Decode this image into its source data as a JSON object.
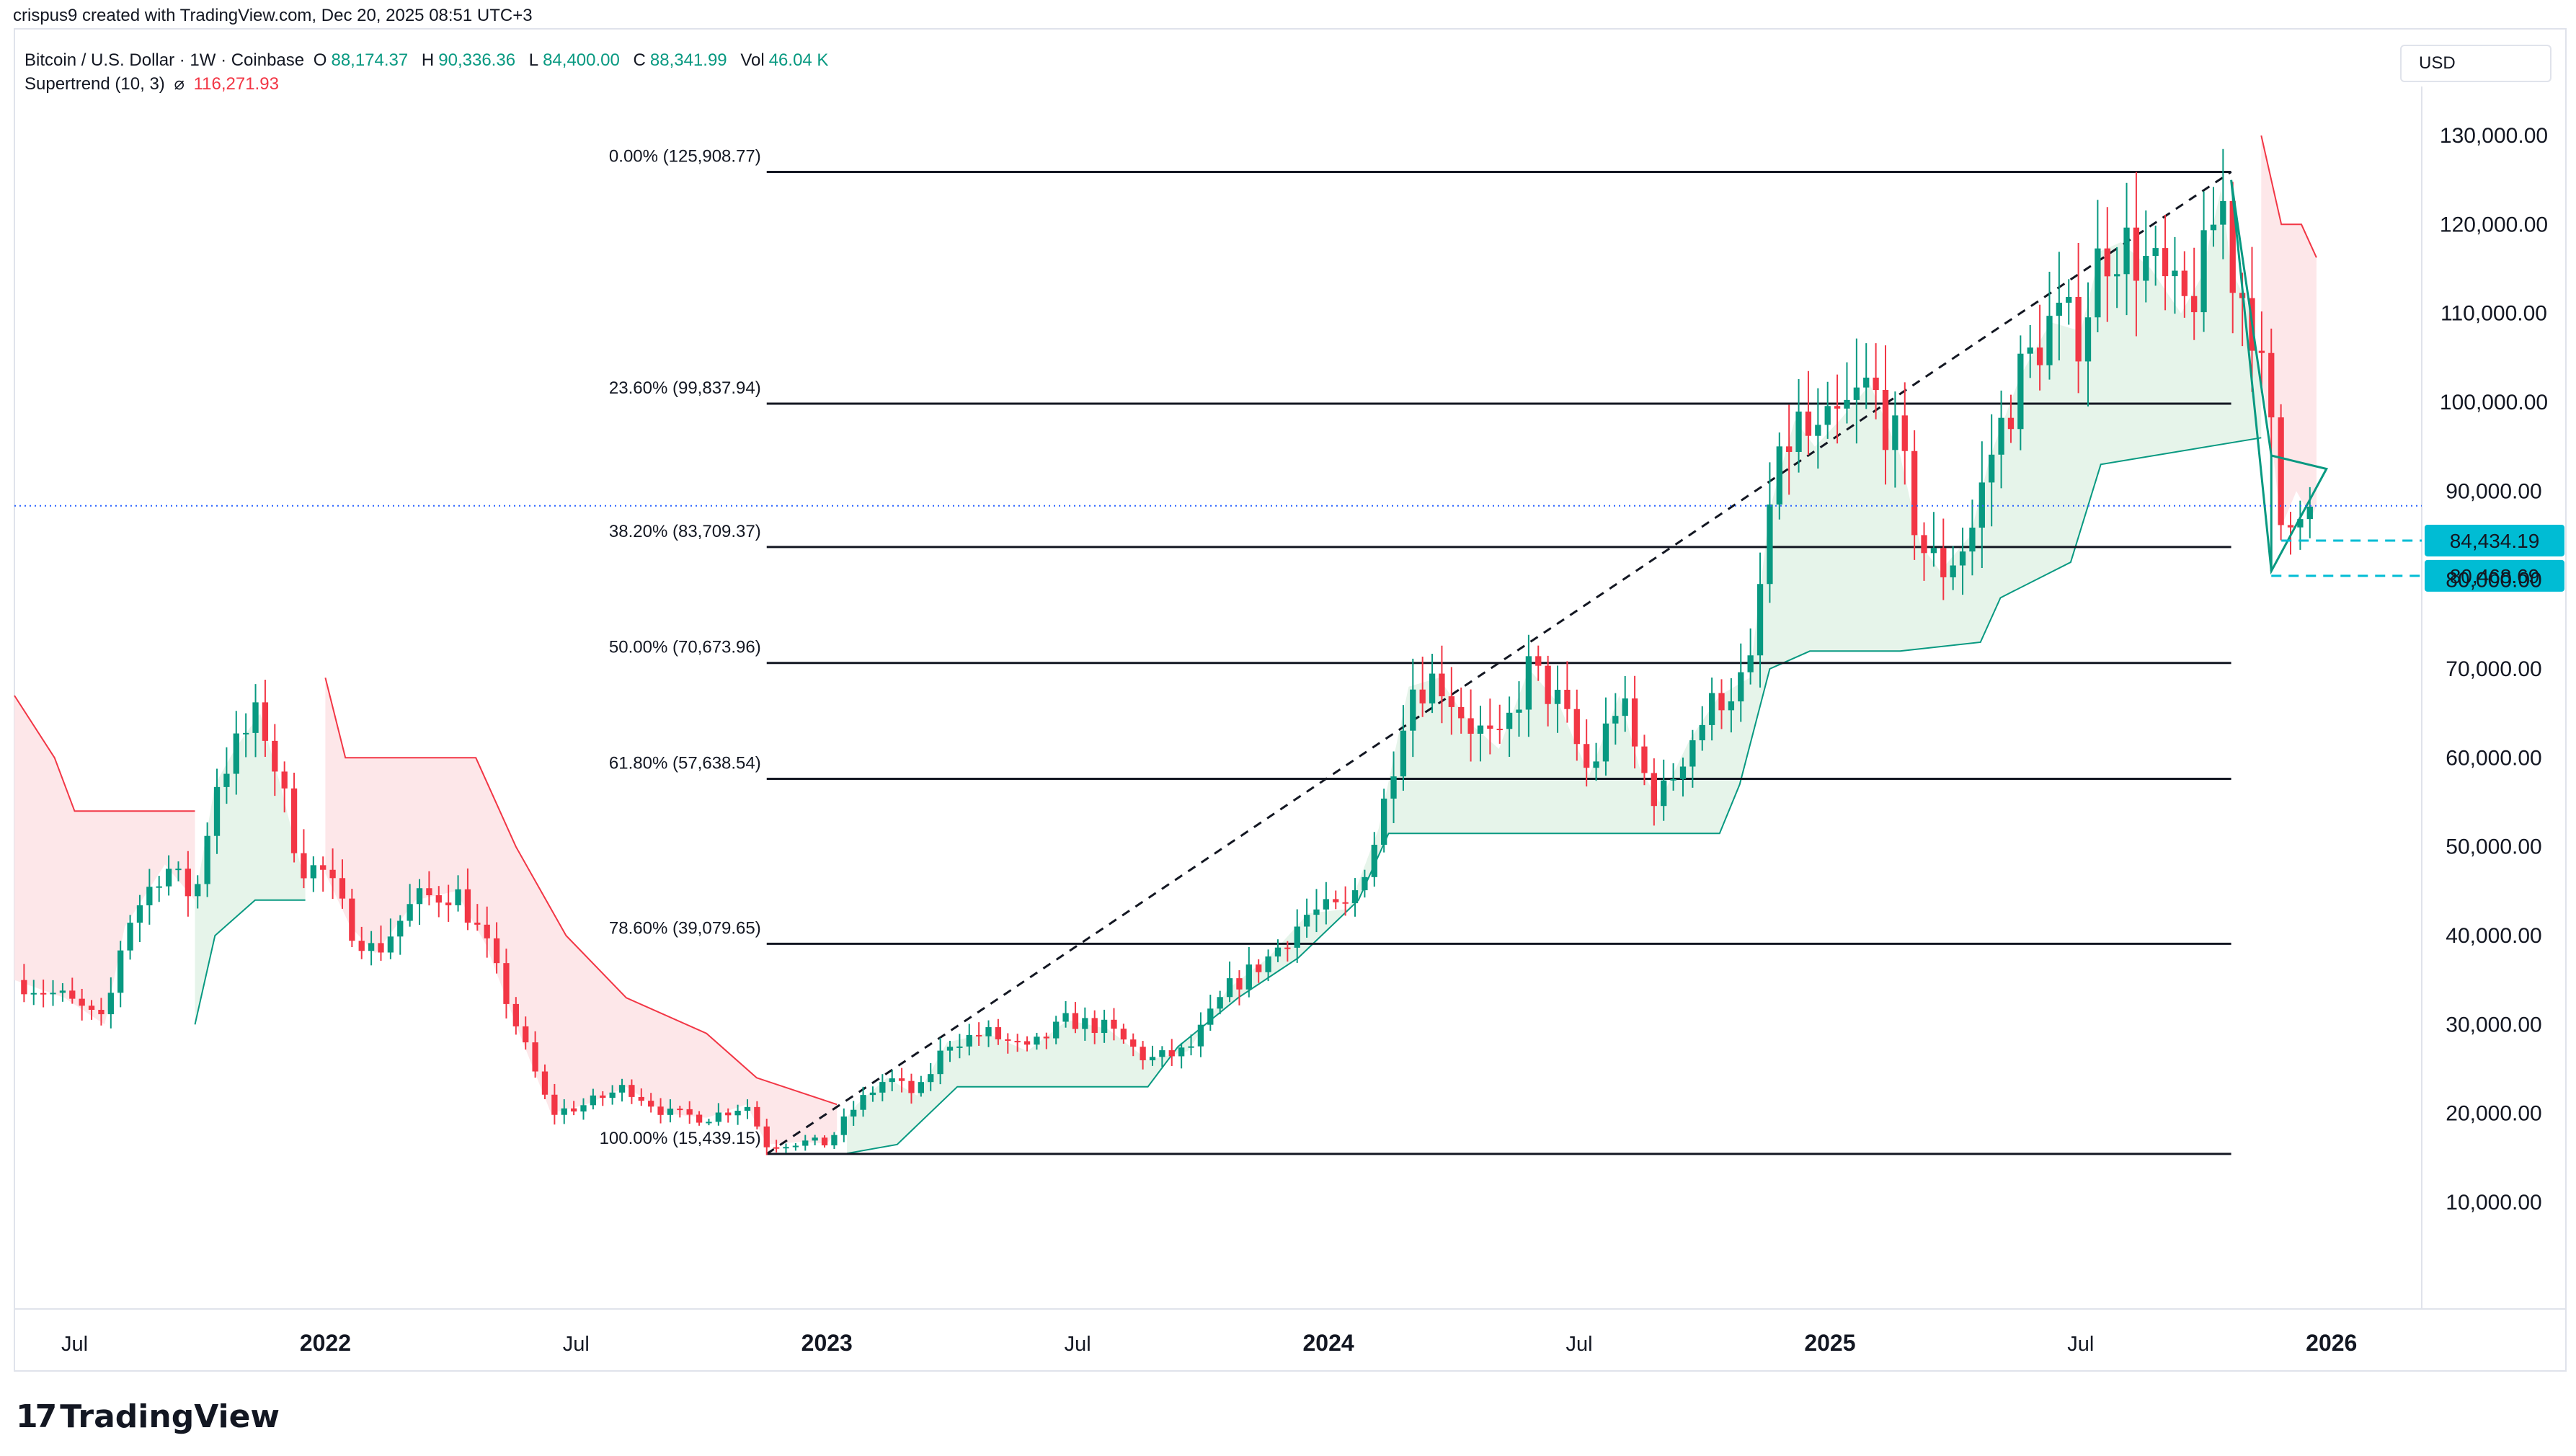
{
  "attribution": "crispus9 created with TradingView.com, Dec 20, 2025 08:51 UTC+3",
  "header": {
    "symbol": "Bitcoin / U.S. Dollar · 1W · Coinbase",
    "o_label": "O",
    "o_value": "88,174.37",
    "h_label": "H",
    "h_value": "90,336.36",
    "l_label": "L",
    "l_value": "84,400.00",
    "c_label": "C",
    "c_value": "88,341.99",
    "vol_label": "Vol",
    "vol_value": "46.04 K",
    "indicator_name": "Supertrend (10, 3)",
    "indicator_symbol": "⌀",
    "indicator_value": "116,271.93"
  },
  "currency": "USD",
  "logo_text": "TradingView",
  "colors": {
    "up": "#089981",
    "down": "#f23645",
    "axis_label_bg": "#00bcd4",
    "bull_line": "#089981",
    "bear_line": "#f23645",
    "bull_fill": "#e6f4ea",
    "bear_fill": "#fde7e9"
  },
  "chart_data": {
    "type": "candlestick",
    "title": "Bitcoin / U.S. Dollar · 1W · Coinbase",
    "y_axis": {
      "ticks": [
        10000,
        20000,
        30000,
        40000,
        50000,
        60000,
        70000,
        80000,
        90000,
        100000,
        110000,
        120000,
        130000
      ],
      "tick_labels": [
        "10,000.00",
        "20,000.00",
        "30,000.00",
        "40,000.00",
        "50,000.00",
        "60,000.00",
        "70,000.00",
        "80,000.00",
        "90,000.00",
        "100,000.00",
        "110,000.00",
        "120,000.00",
        "130,000.00"
      ],
      "range": [
        -2000,
        142000
      ]
    },
    "x_axis": {
      "range": [
        2021.38,
        2026.18
      ],
      "ticks": [
        {
          "t": 2021.5,
          "label": "Jul",
          "bold": false
        },
        {
          "t": 2022.0,
          "label": "2022",
          "bold": true
        },
        {
          "t": 2022.5,
          "label": "Jul",
          "bold": false
        },
        {
          "t": 2023.0,
          "label": "2023",
          "bold": true
        },
        {
          "t": 2023.5,
          "label": "Jul",
          "bold": false
        },
        {
          "t": 2024.0,
          "label": "2024",
          "bold": true
        },
        {
          "t": 2024.5,
          "label": "Jul",
          "bold": false
        },
        {
          "t": 2025.0,
          "label": "2025",
          "bold": true
        },
        {
          "t": 2025.5,
          "label": "Jul",
          "bold": false
        },
        {
          "t": 2026.0,
          "label": "2026",
          "bold": true
        }
      ]
    },
    "price_path": [
      [
        2021.38,
        35000
      ],
      [
        2021.48,
        33000
      ],
      [
        2021.56,
        30000
      ],
      [
        2021.6,
        41000
      ],
      [
        2021.68,
        48000
      ],
      [
        2021.74,
        44000
      ],
      [
        2021.78,
        57000
      ],
      [
        2021.82,
        61000
      ],
      [
        2021.87,
        65000
      ],
      [
        2021.91,
        57000
      ],
      [
        2021.95,
        48000
      ],
      [
        2022.0,
        47000
      ],
      [
        2022.05,
        41000
      ],
      [
        2022.1,
        38000
      ],
      [
        2022.18,
        44000
      ],
      [
        2022.26,
        45000
      ],
      [
        2022.32,
        39000
      ],
      [
        2022.38,
        30000
      ],
      [
        2022.45,
        20000
      ],
      [
        2022.52,
        21000
      ],
      [
        2022.6,
        23000
      ],
      [
        2022.68,
        20000
      ],
      [
        2022.76,
        19500
      ],
      [
        2022.84,
        21000
      ],
      [
        2022.88,
        16500
      ],
      [
        2022.95,
        16800
      ],
      [
        2023.0,
        16600
      ],
      [
        2023.06,
        21000
      ],
      [
        2023.12,
        24000
      ],
      [
        2023.18,
        22000
      ],
      [
        2023.24,
        28000
      ],
      [
        2023.32,
        29000
      ],
      [
        2023.4,
        27000
      ],
      [
        2023.48,
        30500
      ],
      [
        2023.56,
        29500
      ],
      [
        2023.64,
        26000
      ],
      [
        2023.72,
        27000
      ],
      [
        2023.8,
        34000
      ],
      [
        2023.88,
        37500
      ],
      [
        2023.96,
        42500
      ],
      [
        2024.04,
        43000
      ],
      [
        2024.1,
        52000
      ],
      [
        2024.16,
        68000
      ],
      [
        2024.22,
        69000
      ],
      [
        2024.28,
        64000
      ],
      [
        2024.34,
        61000
      ],
      [
        2024.4,
        70000
      ],
      [
        2024.46,
        66000
      ],
      [
        2024.52,
        58000
      ],
      [
        2024.58,
        67000
      ],
      [
        2024.62,
        59000
      ],
      [
        2024.66,
        55000
      ],
      [
        2024.72,
        62000
      ],
      [
        2024.78,
        67000
      ],
      [
        2024.84,
        69000
      ],
      [
        2024.88,
        88000
      ],
      [
        2024.93,
        98000
      ],
      [
        2024.97,
        95000
      ],
      [
        2025.02,
        98000
      ],
      [
        2025.08,
        102000
      ],
      [
        2025.14,
        94000
      ],
      [
        2025.18,
        84000
      ],
      [
        2025.22,
        81000
      ],
      [
        2025.28,
        85000
      ],
      [
        2025.32,
        94000
      ],
      [
        2025.38,
        103000
      ],
      [
        2025.44,
        109000
      ],
      [
        2025.5,
        108000
      ],
      [
        2025.54,
        117000
      ],
      [
        2025.58,
        118000
      ],
      [
        2025.64,
        115000
      ],
      [
        2025.7,
        110000
      ],
      [
        2025.74,
        114000
      ],
      [
        2025.78,
        124000
      ],
      [
        2025.8,
        115000
      ],
      [
        2025.84,
        110000
      ],
      [
        2025.88,
        96000
      ],
      [
        2025.9,
        86000
      ],
      [
        2025.93,
        90000
      ],
      [
        2025.96,
        87000
      ],
      [
        2025.97,
        88342
      ]
    ],
    "supertrend": {
      "segments": [
        {
          "trend": "bear",
          "points": [
            [
              2021.38,
              67000
            ],
            [
              2021.46,
              60000
            ],
            [
              2021.5,
              54000
            ],
            [
              2021.74,
              54000
            ]
          ]
        },
        {
          "trend": "bull",
          "points": [
            [
              2021.74,
              30000
            ],
            [
              2021.78,
              40000
            ],
            [
              2021.86,
              44000
            ],
            [
              2021.96,
              44000
            ]
          ]
        },
        {
          "trend": "bear",
          "points": [
            [
              2022.0,
              69000
            ],
            [
              2022.04,
              60000
            ],
            [
              2022.3,
              60000
            ],
            [
              2022.38,
              50000
            ],
            [
              2022.48,
              40000
            ],
            [
              2022.6,
              33000
            ],
            [
              2022.76,
              29000
            ],
            [
              2022.86,
              24000
            ],
            [
              2023.02,
              21000
            ]
          ]
        },
        {
          "trend": "bull",
          "points": [
            [
              2023.04,
              15500
            ],
            [
              2023.14,
              16500
            ],
            [
              2023.26,
              23000
            ],
            [
              2023.64,
              23000
            ],
            [
              2023.7,
              27500
            ],
            [
              2023.82,
              33000
            ],
            [
              2023.94,
              37500
            ],
            [
              2024.06,
              44000
            ],
            [
              2024.12,
              51500
            ],
            [
              2024.78,
              51500
            ],
            [
              2024.82,
              57000
            ],
            [
              2024.88,
              70000
            ],
            [
              2024.96,
              72000
            ],
            [
              2025.14,
              72000
            ],
            [
              2025.3,
              73000
            ],
            [
              2025.34,
              78000
            ],
            [
              2025.48,
              82000
            ],
            [
              2025.54,
              93000
            ],
            [
              2025.86,
              96000
            ]
          ]
        },
        {
          "trend": "bear",
          "points": [
            [
              2025.86,
              130000
            ],
            [
              2025.9,
              120000
            ],
            [
              2025.94,
              120000
            ],
            [
              2025.97,
              116272
            ]
          ]
        }
      ]
    },
    "fibonacci": {
      "t_start": 2022.88,
      "t_end": 2025.8,
      "levels": [
        {
          "label": "0.00% (125,908.77)",
          "value": 125908.77
        },
        {
          "label": "23.60% (99,837.94)",
          "value": 99837.94
        },
        {
          "label": "38.20% (83,709.37)",
          "value": 83709.37
        },
        {
          "label": "50.00% (70,673.96)",
          "value": 70673.96
        },
        {
          "label": "61.80% (57,638.54)",
          "value": 57638.54
        },
        {
          "label": "78.60% (39,079.65)",
          "value": 39079.65
        },
        {
          "label": "100.00% (15,439.15)",
          "value": 15439.15
        }
      ],
      "trend_line": {
        "from": [
          2022.88,
          15439.15
        ],
        "to": [
          2025.8,
          125908.77
        ]
      }
    },
    "triangle": {
      "points": [
        [
          2025.8,
          125000
        ],
        [
          2025.88,
          94000
        ],
        [
          2025.99,
          92500
        ],
        [
          2025.88,
          81000
        ]
      ]
    },
    "current_price_line": 88341.99,
    "horizontal_dashes": [
      {
        "value": 84434.19,
        "label": "84,434.19",
        "t_start": 2025.9
      },
      {
        "value": 80468.69,
        "label": "80,468.69",
        "t_start": 2025.88
      }
    ]
  }
}
